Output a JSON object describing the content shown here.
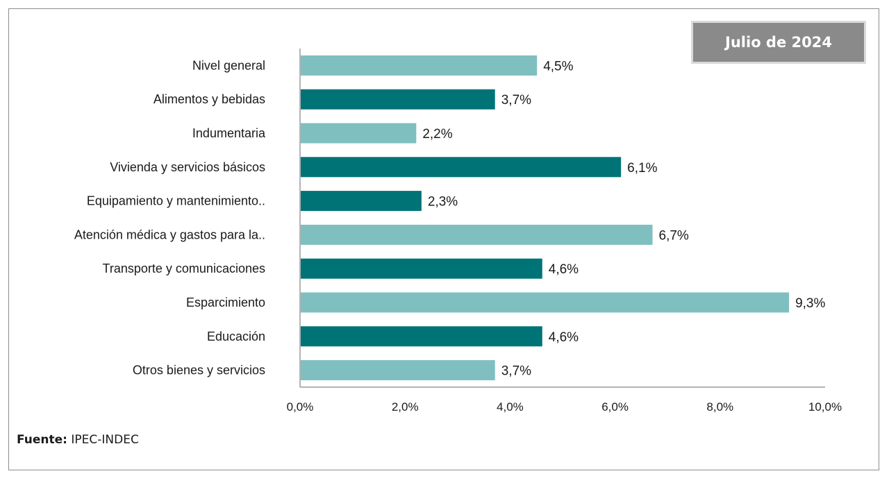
{
  "badge": "Julio de 2024",
  "source": {
    "label": "Fuente:",
    "text": " IPEC-INDEC"
  },
  "colors": {
    "light": "#7fbfbf",
    "dark": "#007377",
    "axis": "#9a9a9a"
  },
  "chart_data": {
    "type": "bar",
    "orientation": "horizontal",
    "title": "",
    "xlabel": "",
    "ylabel": "",
    "xlim": [
      0,
      10
    ],
    "ticks": [
      0,
      2,
      4,
      6,
      8,
      10
    ],
    "tick_labels": [
      "0,0%",
      "2,0%",
      "4,0%",
      "6,0%",
      "8,0%",
      "10,0%"
    ],
    "grid": false,
    "categories": [
      "Nivel general",
      "Alimentos y bebidas",
      "Indumentaria",
      "Vivienda y servicios básicos",
      "Equipamiento y mantenimiento..",
      "Atención médica y gastos para la..",
      "Transporte y comunicaciones",
      "Esparcimiento",
      "Educación",
      "Otros bienes y servicios"
    ],
    "values": [
      4.5,
      3.7,
      2.2,
      6.1,
      2.3,
      6.7,
      4.6,
      9.3,
      4.6,
      3.7
    ],
    "value_labels": [
      "4,5%",
      "3,7%",
      "2,2%",
      "6,1%",
      "2,3%",
      "6,7%",
      "4,6%",
      "9,3%",
      "4,6%",
      "3,7%"
    ],
    "bar_colors": [
      "light",
      "dark",
      "light",
      "dark",
      "dark",
      "light",
      "dark",
      "light",
      "dark",
      "light"
    ]
  }
}
